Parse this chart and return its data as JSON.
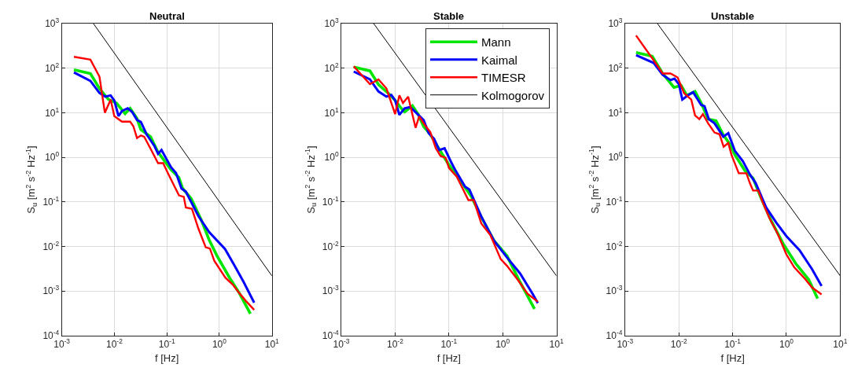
{
  "chart_data": [
    {
      "type": "line",
      "title": "Neutral",
      "xlabel": "f [Hz]",
      "ylabel": "S$_{u}$ [m$^{2}$ s$^{-2}$ Hz$^{-1}$]",
      "log": "xy",
      "grid": true,
      "legend": false,
      "xlim": [
        0.001,
        10
      ],
      "ylim": [
        0.0001,
        1000
      ],
      "xticks": [
        {
          "value": 0.001,
          "label": "10$^{-3}$"
        },
        {
          "value": 0.01,
          "label": "10$^{-2}$"
        },
        {
          "value": 0.1,
          "label": "10$^{-1}$"
        },
        {
          "value": 1,
          "label": "10$^{0}$"
        },
        {
          "value": 10,
          "label": "10$^{1}$"
        }
      ],
      "yticks": [
        {
          "value": 0.0001,
          "label": "10$^{-4}$"
        },
        {
          "value": 0.001,
          "label": "10$^{-3}$"
        },
        {
          "value": 0.01,
          "label": "10$^{-2}$"
        },
        {
          "value": 0.1,
          "label": "10$^{-1}$"
        },
        {
          "value": 1,
          "label": "10$^{0}$"
        },
        {
          "value": 10,
          "label": "10$^{1}$"
        },
        {
          "value": 100,
          "label": "10$^{2}$"
        },
        {
          "value": 1000,
          "label": "10$^{3}$"
        }
      ],
      "series": [
        {
          "color": "#00e600",
          "x": [
            0.0017,
            0.0035,
            0.0052,
            0.0077,
            0.011,
            0.016,
            0.02,
            0.027,
            0.032,
            0.049,
            0.068,
            0.12,
            0.17,
            0.2,
            0.29,
            0.45,
            0.64,
            0.9,
            1.56,
            2.4,
            3.9
          ],
          "values": [
            92,
            76,
            35,
            20,
            16.5,
            9.6,
            12.6,
            7.4,
            4.2,
            2.9,
            1.3,
            0.53,
            0.35,
            0.2,
            0.12,
            0.04,
            0.014,
            0.0062,
            0.002,
            0.0009,
            0.00031
          ]
        },
        {
          "color": "#0000ff",
          "x": [
            0.0017,
            0.0035,
            0.0052,
            0.0067,
            0.0085,
            0.01,
            0.012,
            0.014,
            0.018,
            0.022,
            0.027,
            0.032,
            0.041,
            0.058,
            0.068,
            0.079,
            0.12,
            0.15,
            0.19,
            0.23,
            0.4,
            0.64,
            1.28,
            1.95,
            2.9,
            4.6
          ],
          "values": [
            80,
            52,
            28,
            23,
            24.5,
            18.8,
            8.4,
            11,
            12.6,
            10.3,
            6.9,
            6.2,
            3.3,
            1.8,
            1.2,
            1.46,
            0.6,
            0.44,
            0.2,
            0.17,
            0.048,
            0.021,
            0.0088,
            0.0037,
            0.0016,
            0.00055
          ]
        },
        {
          "color": "#ff0000",
          "x": [
            0.0017,
            0.0035,
            0.0052,
            0.0066,
            0.0085,
            0.01,
            0.014,
            0.02,
            0.023,
            0.027,
            0.032,
            0.037,
            0.049,
            0.068,
            0.085,
            0.106,
            0.17,
            0.21,
            0.23,
            0.3,
            0.4,
            0.55,
            0.66,
            0.8,
            1.3,
            1.8,
            2.4,
            3.2,
            4.6
          ],
          "values": [
            180,
            155,
            65,
            10,
            19.6,
            8.4,
            6.3,
            6.3,
            5,
            2.7,
            3.1,
            2.9,
            1.56,
            0.74,
            0.74,
            0.43,
            0.14,
            0.13,
            0.075,
            0.07,
            0.025,
            0.0096,
            0.009,
            0.0048,
            0.002,
            0.0014,
            0.0009,
            0.0006,
            0.00038
          ]
        },
        {
          "color": "#000000",
          "x": [
            0.004,
            10
          ],
          "values": [
            1000,
            0.0022
          ]
        }
      ]
    },
    {
      "type": "line",
      "title": "Stable",
      "xlabel": "f [Hz]",
      "ylabel": "S$_{u}$ [m$^{2}$ s$^{-2}$ Hz$^{-1}$]",
      "log": "xy",
      "grid": true,
      "legend": "top right",
      "xlim": [
        0.001,
        10
      ],
      "ylim": [
        0.0001,
        1000
      ],
      "xticks": [
        {
          "value": 0.001,
          "label": "10$^{-3}$"
        },
        {
          "value": 0.01,
          "label": "10$^{-2}$"
        },
        {
          "value": 0.1,
          "label": "10$^{-1}$"
        },
        {
          "value": 1,
          "label": "10$^{0}$"
        },
        {
          "value": 10,
          "label": "10$^{1}$"
        }
      ],
      "yticks": [
        {
          "value": 0.0001,
          "label": "10$^{-4}$"
        },
        {
          "value": 0.001,
          "label": "10$^{-3}$"
        },
        {
          "value": 0.01,
          "label": "10$^{-2}$"
        },
        {
          "value": 0.1,
          "label": "10$^{-1}$"
        },
        {
          "value": 1,
          "label": "10$^{0}$"
        },
        {
          "value": 10,
          "label": "10$^{1}$"
        },
        {
          "value": 100,
          "label": "10$^{2}$"
        },
        {
          "value": 1000,
          "label": "10$^{3}$"
        }
      ],
      "series": [
        {
          "name": "Mann",
          "color": "#00e600",
          "x": [
            0.0017,
            0.0034,
            0.0049,
            0.0077,
            0.01,
            0.013,
            0.015,
            0.021,
            0.027,
            0.034,
            0.045,
            0.07,
            0.1,
            0.17,
            0.26,
            0.4,
            0.69,
            1.2,
            2.1,
            3.9
          ],
          "values": [
            106,
            87,
            43,
            26.5,
            19,
            12.6,
            10.5,
            14.3,
            9.1,
            4.9,
            3.3,
            1.36,
            0.68,
            0.28,
            0.134,
            0.046,
            0.0135,
            0.0062,
            0.0016,
            0.0004
          ]
        },
        {
          "name": "Kaimal",
          "color": "#0000ff",
          "x": [
            0.0017,
            0.0034,
            0.0049,
            0.0069,
            0.0085,
            0.01,
            0.012,
            0.015,
            0.019,
            0.024,
            0.034,
            0.042,
            0.053,
            0.066,
            0.083,
            0.11,
            0.13,
            0.2,
            0.24,
            0.4,
            0.69,
            1.2,
            2.1,
            3.6,
            4.5
          ],
          "values": [
            84,
            56,
            30,
            23,
            25,
            19,
            9,
            12.6,
            13.4,
            10.3,
            6.8,
            3.5,
            2.6,
            1.45,
            1.6,
            0.78,
            0.53,
            0.22,
            0.19,
            0.047,
            0.0135,
            0.0057,
            0.0025,
            0.00087,
            0.00054
          ]
        },
        {
          "name": "TIMESR",
          "color": "#ff0000",
          "x": [
            0.0017,
            0.0034,
            0.0049,
            0.0069,
            0.01,
            0.012,
            0.014,
            0.0175,
            0.024,
            0.028,
            0.036,
            0.045,
            0.057,
            0.07,
            0.087,
            0.1,
            0.14,
            0.18,
            0.23,
            0.29,
            0.4,
            0.59,
            0.92,
            1.2,
            1.9,
            2.9,
            4.5
          ],
          "values": [
            110,
            44,
            56,
            35,
            9.3,
            24.6,
            16.5,
            23,
            4.6,
            8.3,
            5.2,
            3.7,
            1.6,
            1.07,
            0.98,
            0.58,
            0.37,
            0.2,
            0.11,
            0.11,
            0.033,
            0.018,
            0.0052,
            0.0037,
            0.0018,
            0.00087,
            0.00058
          ]
        },
        {
          "name": "Kolmogorov",
          "color": "#000000",
          "x": [
            0.004,
            10
          ],
          "values": [
            1000,
            0.0022
          ]
        }
      ]
    },
    {
      "type": "line",
      "title": "Unstable",
      "xlabel": "f [Hz]",
      "ylabel": "S$_{u}$ [m$^{2}$ s$^{-2}$ Hz$^{-1}$]",
      "log": "xy",
      "grid": true,
      "legend": false,
      "xlim": [
        0.001,
        10
      ],
      "ylim": [
        0.0001,
        1000
      ],
      "xticks": [
        {
          "value": 0.001,
          "label": "10$^{-3}$"
        },
        {
          "value": 0.01,
          "label": "10$^{-2}$"
        },
        {
          "value": 0.1,
          "label": "10$^{-1}$"
        },
        {
          "value": 1,
          "label": "10$^{0}$"
        },
        {
          "value": 10,
          "label": "10$^{1}$"
        }
      ],
      "yticks": [
        {
          "value": 0.0001,
          "label": "10$^{-4}$"
        },
        {
          "value": 0.001,
          "label": "10$^{-3}$"
        },
        {
          "value": 0.01,
          "label": "10$^{-2}$"
        },
        {
          "value": 0.1,
          "label": "10$^{-1}$"
        },
        {
          "value": 1,
          "label": "10$^{0}$"
        },
        {
          "value": 10,
          "label": "10$^{1}$"
        },
        {
          "value": 100,
          "label": "10$^{2}$"
        },
        {
          "value": 1000,
          "label": "10$^{3}$"
        }
      ],
      "series": [
        {
          "color": "#00e600",
          "x": [
            0.0016,
            0.0032,
            0.005,
            0.0081,
            0.011,
            0.014,
            0.02,
            0.026,
            0.035,
            0.049,
            0.067,
            0.088,
            0.11,
            0.17,
            0.24,
            0.33,
            0.52,
            0.89,
            1.5,
            2.6,
            3.8
          ],
          "values": [
            225,
            185,
            76,
            37,
            41,
            24.6,
            30,
            16.5,
            7.2,
            6.6,
            3.2,
            2,
            1.14,
            0.5,
            0.34,
            0.13,
            0.038,
            0.011,
            0.0041,
            0.0018,
            0.00068
          ]
        },
        {
          "color": "#0000ff",
          "x": [
            0.0016,
            0.0034,
            0.005,
            0.007,
            0.0083,
            0.01,
            0.0116,
            0.0147,
            0.0184,
            0.026,
            0.03,
            0.036,
            0.046,
            0.067,
            0.083,
            0.11,
            0.155,
            0.21,
            0.27,
            0.42,
            0.65,
            1.0,
            1.75,
            3.0,
            4.5
          ],
          "values": [
            196,
            131,
            71,
            54,
            58,
            44,
            19.7,
            24.6,
            29,
            15,
            14,
            7.2,
            5.8,
            2.9,
            3.5,
            1.4,
            0.82,
            0.41,
            0.26,
            0.075,
            0.034,
            0.017,
            0.0083,
            0.0031,
            0.0013
          ]
        },
        {
          "color": "#ff0000",
          "x": [
            0.0016,
            0.0034,
            0.005,
            0.007,
            0.0095,
            0.0125,
            0.017,
            0.02,
            0.024,
            0.028,
            0.035,
            0.046,
            0.057,
            0.068,
            0.083,
            0.095,
            0.13,
            0.18,
            0.21,
            0.24,
            0.3,
            0.36,
            0.48,
            0.69,
            1.0,
            1.4,
            2.2,
            3.0,
            4.5
          ],
          "values": [
            540,
            150,
            76,
            76,
            62,
            27.5,
            19.7,
            8.7,
            7.2,
            9.3,
            5.8,
            3.6,
            3.3,
            1.72,
            2.1,
            1.14,
            0.44,
            0.44,
            0.26,
            0.18,
            0.18,
            0.1,
            0.044,
            0.019,
            0.0066,
            0.0034,
            0.0019,
            0.0012,
            0.00084
          ]
        },
        {
          "color": "#000000",
          "x": [
            0.004,
            10
          ],
          "values": [
            1000,
            0.0022
          ]
        }
      ]
    }
  ]
}
